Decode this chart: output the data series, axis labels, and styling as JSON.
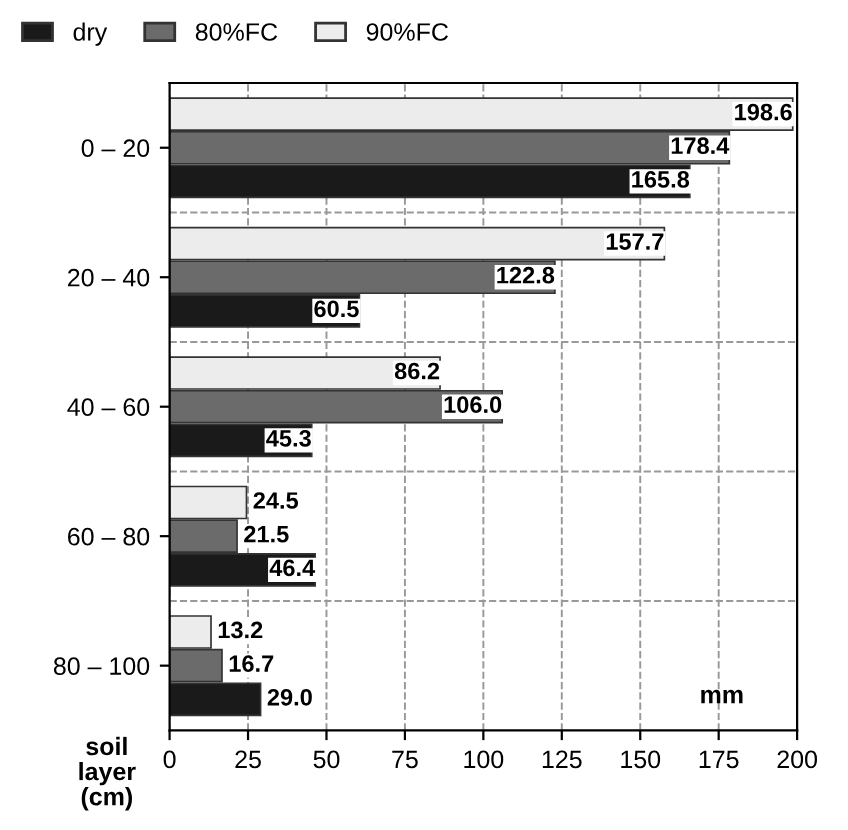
{
  "chart_data": {
    "type": "bar",
    "orientation": "horizontal",
    "xlabel": "mm",
    "ylabel": "soil\nlayer\n(cm)",
    "categories": [
      "0 – 20",
      "20 – 40",
      "40 – 60",
      "60 – 80",
      "80 – 100"
    ],
    "series": [
      {
        "name": "dry",
        "color": "#1a1a1a",
        "values": [
          165.8,
          60.5,
          45.3,
          46.4,
          29.0
        ]
      },
      {
        "name": "80%FC",
        "color": "#6b6b6b",
        "values": [
          178.4,
          122.8,
          106.0,
          21.5,
          16.7
        ]
      },
      {
        "name": "90%FC",
        "color": "#ececec",
        "values": [
          198.6,
          157.7,
          86.2,
          24.5,
          13.2
        ]
      }
    ],
    "value_labels": [
      [
        "165.8",
        "60.5",
        "45.3",
        "46.4",
        "29.0"
      ],
      [
        "178.4",
        "122.8",
        "106.0",
        "21.5",
        "16.7"
      ],
      [
        "198.6",
        "157.7",
        "86.2",
        "24.5",
        "13.2"
      ]
    ],
    "xlim": [
      0,
      200
    ],
    "xticks": [
      0,
      25,
      50,
      75,
      100,
      125,
      150,
      175,
      200
    ],
    "grid": true,
    "legend": "top left"
  }
}
